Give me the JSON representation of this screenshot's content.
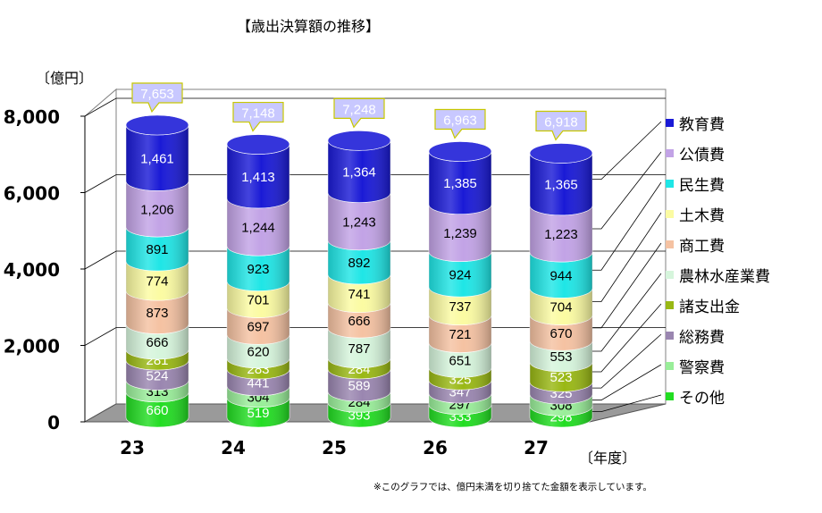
{
  "chart_data": {
    "type": "bar",
    "stacked": true,
    "title": "【歳出決算額の推移】",
    "ylabel": "〔億円〕",
    "xlabel": "〔年度〕",
    "ylim": [
      0,
      8000
    ],
    "yticks": [
      "0",
      "2,000",
      "4,000",
      "6,000",
      "8,000"
    ],
    "categories": [
      "23",
      "24",
      "25",
      "26",
      "27"
    ],
    "totals": [
      "7,653",
      "7,148",
      "7,248",
      "6,963",
      "6,918"
    ],
    "series": [
      {
        "name": "その他",
        "color": "#22dd22",
        "label_color": "#ffffff",
        "values": [
          660,
          519,
          393,
          333,
          298
        ]
      },
      {
        "name": "警察費",
        "color": "#99ee99",
        "label_color": "#000000",
        "values": [
          313,
          304,
          284,
          297,
          308
        ]
      },
      {
        "name": "総務費",
        "color": "#9a86b0",
        "label_color": "#ffffff",
        "values": [
          524,
          441,
          589,
          347,
          325
        ]
      },
      {
        "name": "諸支出金",
        "color": "#99b814",
        "label_color": "#ffffff",
        "values": [
          281,
          283,
          284,
          325,
          523
        ]
      },
      {
        "name": "農林水産業費",
        "color": "#d6f5dc",
        "label_color": "#000000",
        "values": [
          666,
          620,
          787,
          651,
          553
        ]
      },
      {
        "name": "商工費",
        "color": "#f5c2a2",
        "label_color": "#000000",
        "values": [
          873,
          697,
          666,
          721,
          670
        ]
      },
      {
        "name": "土木費",
        "color": "#fbfba2",
        "label_color": "#000000",
        "values": [
          774,
          701,
          741,
          737,
          704
        ]
      },
      {
        "name": "民生費",
        "color": "#1fe6e6",
        "label_color": "#000000",
        "values": [
          891,
          923,
          892,
          924,
          944
        ]
      },
      {
        "name": "公債費",
        "color": "#c2a3e6",
        "label_color": "#000000",
        "values": [
          1206,
          1244,
          1243,
          1239,
          1223
        ]
      },
      {
        "name": "教育費",
        "color": "#1a1ad6",
        "label_color": "#ffffff",
        "values": [
          1461,
          1413,
          1364,
          1385,
          1365
        ]
      }
    ],
    "legend_position": "right",
    "note": "※このグラフでは、億円未満を切り捨てた金額を表示しています。"
  }
}
